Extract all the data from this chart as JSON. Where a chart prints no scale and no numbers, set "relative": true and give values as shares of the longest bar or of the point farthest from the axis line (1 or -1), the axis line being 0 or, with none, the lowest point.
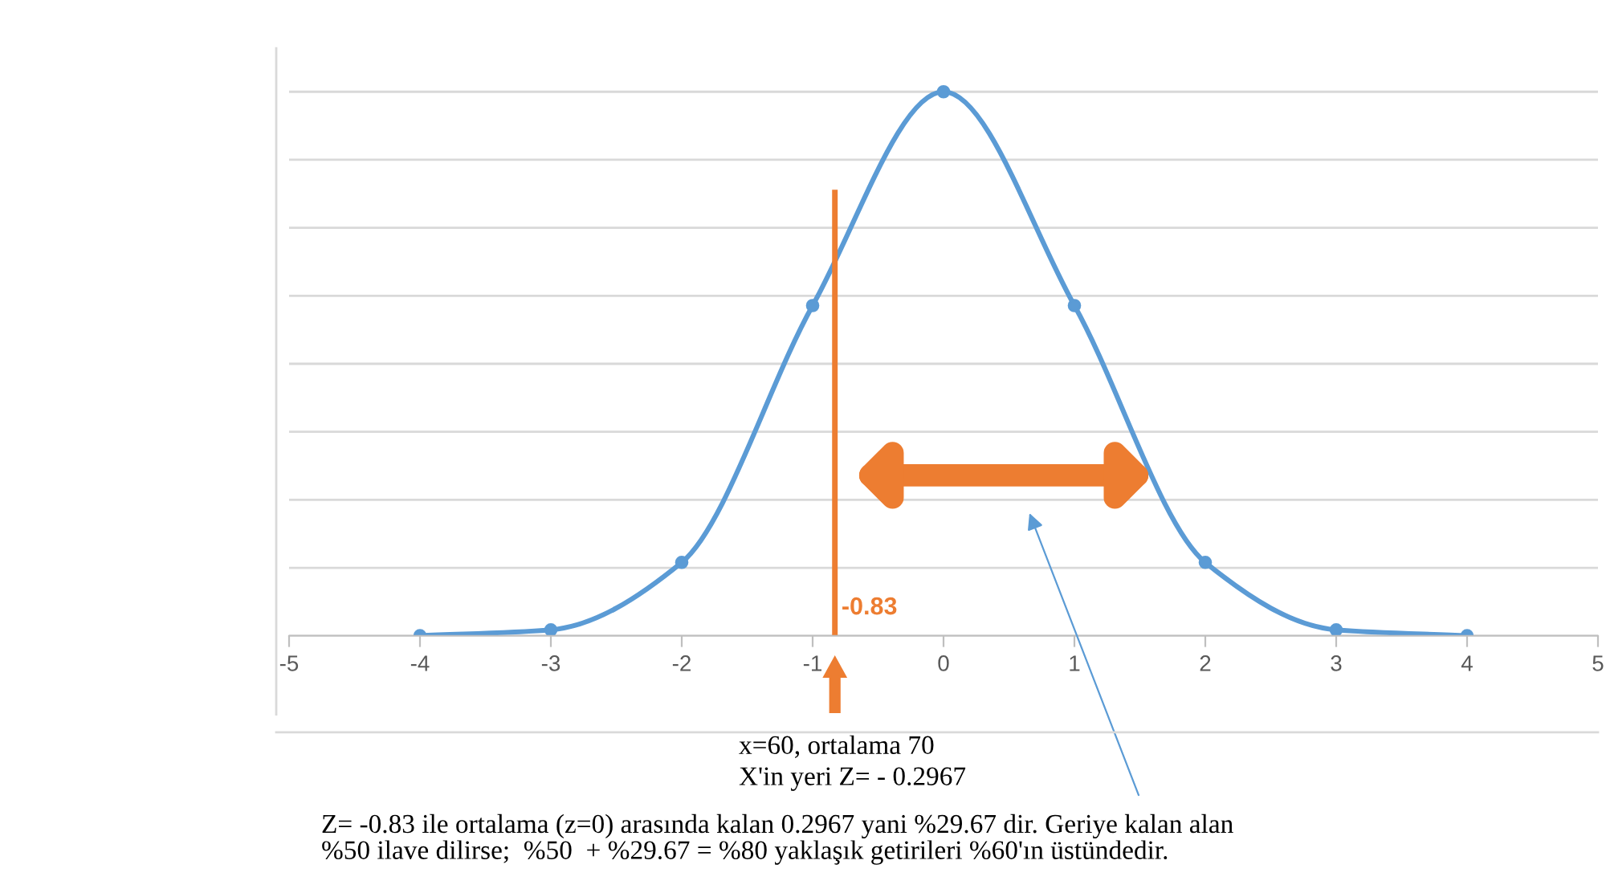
{
  "chart_data": {
    "type": "line",
    "relative": true,
    "x": [
      -4,
      -3,
      -2,
      -1,
      0,
      1,
      2,
      3,
      4
    ],
    "series": [
      {
        "color": "#5b9bd5",
        "values": [
          0.0003,
          0.011,
          0.135,
          0.607,
          1,
          0.607,
          0.135,
          0.011,
          0.0003
        ]
      }
    ],
    "xlim": [
      -5,
      5
    ],
    "xticks": [
      -5,
      -4,
      -3,
      -2,
      -1,
      0,
      1,
      2,
      3,
      4,
      5
    ],
    "grid": "y",
    "marker": "circle",
    "line_style": "solid",
    "tick_labels": "x",
    "ref_lines": [
      {
        "axis": "x",
        "value": -0.83,
        "label": "-0.83",
        "color": "#ed7d31"
      }
    ],
    "annotations": [
      "x=60, ortalama 70",
      "X'in yeri Z= - 0.2967",
      "Z= -0.83 ile ortalama (z=0) arasında kalan 0.2967 yani %29.67 dir. Geriye kalan alan\n%50 ilave dilirse;  %50  + %29.67 = %80 yaklaşık getirileri %60'ın üstündedir."
    ]
  }
}
